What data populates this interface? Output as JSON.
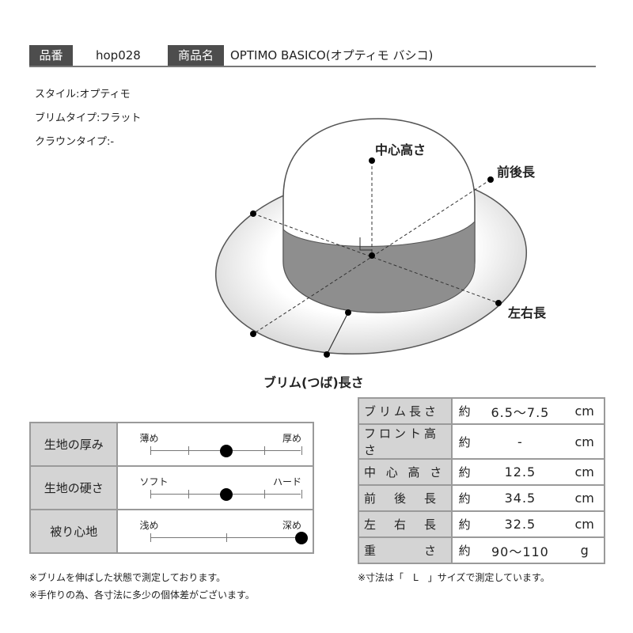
{
  "header": {
    "code_label": "品番",
    "code_value": "hop028",
    "name_label": "商品名",
    "name_value": "OPTIMO BASICO(オプティモ バシコ)"
  },
  "specs": [
    "スタイル:オプティモ",
    "ブリムタイプ:フラット",
    "クラウンタイプ:-"
  ],
  "diagram": {
    "center_height": "中心高さ",
    "front_back": "前後長",
    "left_right": "左右長",
    "brim_length": "ブリム(つば)長さ"
  },
  "feel": [
    {
      "label": "生地の厚み",
      "left": "薄め",
      "right": "厚め",
      "ticks": 5,
      "value": 0.5
    },
    {
      "label": "生地の硬さ",
      "left": "ソフト",
      "right": "ハード",
      "ticks": 5,
      "value": 0.5
    },
    {
      "label": "被り心地",
      "left": "浅め",
      "right": "深め",
      "ticks": 3,
      "value": 1.0
    }
  ],
  "sizes": [
    {
      "label": "ブリム長さ",
      "approx": "約",
      "value": "6.5～7.5",
      "unit": "cm"
    },
    {
      "label": "フロント高さ",
      "approx": "約",
      "value": "-",
      "unit": "cm"
    },
    {
      "label": "中 心 高 さ",
      "approx": "約",
      "value": "12.5",
      "unit": "cm"
    },
    {
      "label": "前　後　長",
      "approx": "約",
      "value": "34.5",
      "unit": "cm"
    },
    {
      "label": "左　右　長",
      "approx": "約",
      "value": "32.5",
      "unit": "cm"
    },
    {
      "label": "重　　　さ",
      "approx": "約",
      "value": "90～110",
      "unit": "g"
    }
  ],
  "notes_left": [
    "※ブリムを伸ばした状態で測定しております。",
    "※手作りの為、各寸法に多少の個体差がございます。"
  ],
  "note_right": "※寸法は「　L　」サイズで測定しています。"
}
